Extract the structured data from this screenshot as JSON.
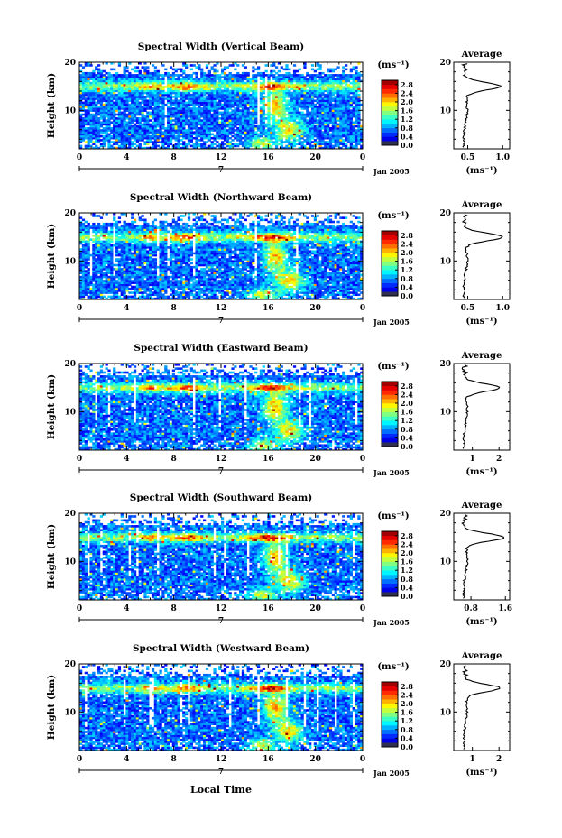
{
  "figure": {
    "xlabel_bottom": "Local Time",
    "colorbar_unit": "(ms⁻¹)",
    "avg_title": "Average",
    "avg_unit": "(ms⁻¹)",
    "day_label": "7",
    "date_label": "Jan 2005"
  },
  "chart_data": [
    {
      "type": "heatmap",
      "title": "Spectral Width (Vertical Beam)",
      "ylabel": "Height (km)",
      "xlim": [
        0,
        24
      ],
      "ylim": [
        2,
        20
      ],
      "x_ticks": [
        "0",
        "4",
        "8",
        "12",
        "16",
        "20",
        "0"
      ],
      "y_ticks": [
        "10",
        "20"
      ],
      "colorbar": {
        "ticks": [
          "2.8",
          "2.4",
          "2.0",
          "1.6",
          "1.2",
          "0.8",
          "0.4",
          "0.0"
        ],
        "range": [
          0,
          3.0
        ]
      },
      "average": {
        "x_ticks": [
          "0.5",
          "1.0"
        ],
        "xlim": [
          0.3,
          1.1
        ],
        "y_ticks": [
          "10",
          "20"
        ],
        "peak_height_km": 15,
        "peak_value": 0.95
      }
    },
    {
      "type": "heatmap",
      "title": "Spectral Width (Northward Beam)",
      "ylabel": "Height (km)",
      "xlim": [
        0,
        24
      ],
      "ylim": [
        2,
        20
      ],
      "x_ticks": [
        "0",
        "4",
        "8",
        "12",
        "16",
        "20",
        "0"
      ],
      "y_ticks": [
        "10",
        "20"
      ],
      "colorbar": {
        "ticks": [
          "2.8",
          "2.4",
          "2.0",
          "1.6",
          "1.2",
          "0.8",
          "0.4",
          "0.0"
        ],
        "range": [
          0,
          3.0
        ]
      },
      "average": {
        "x_ticks": [
          "0.5",
          "1.0"
        ],
        "xlim": [
          0.3,
          1.1
        ],
        "y_ticks": [
          "10",
          "20"
        ],
        "peak_height_km": 15,
        "peak_value": 0.98
      }
    },
    {
      "type": "heatmap",
      "title": "Spectral Width (Eastward Beam)",
      "ylabel": "Height (km)",
      "xlim": [
        0,
        24
      ],
      "ylim": [
        2,
        20
      ],
      "x_ticks": [
        "0",
        "4",
        "8",
        "12",
        "16",
        "20",
        "0"
      ],
      "y_ticks": [
        "10",
        "20"
      ],
      "colorbar": {
        "ticks": [
          "2.8",
          "2.4",
          "2.0",
          "1.6",
          "1.2",
          "0.8",
          "0.4",
          "0.0"
        ],
        "range": [
          0,
          3.0
        ]
      },
      "average": {
        "x_ticks": [
          "1",
          "2"
        ],
        "xlim": [
          0.3,
          2.4
        ],
        "y_ticks": [
          "10",
          "20"
        ],
        "peak_height_km": 15,
        "peak_value": 2.0
      }
    },
    {
      "type": "heatmap",
      "title": "Spectral Width (Southward Beam)",
      "ylabel": "Height (km)",
      "xlim": [
        0,
        24
      ],
      "ylim": [
        2,
        20
      ],
      "x_ticks": [
        "0",
        "4",
        "8",
        "12",
        "16",
        "20",
        "0"
      ],
      "y_ticks": [
        "10",
        "20"
      ],
      "colorbar": {
        "ticks": [
          "2.8",
          "2.4",
          "2.0",
          "1.6",
          "1.2",
          "0.8",
          "0.4",
          "0.0"
        ],
        "range": [
          0,
          3.0
        ]
      },
      "average": {
        "x_ticks": [
          "0.8",
          "1.6"
        ],
        "xlim": [
          0.4,
          1.7
        ],
        "y_ticks": [
          "10",
          "20"
        ],
        "peak_height_km": 15,
        "peak_value": 1.55
      }
    },
    {
      "type": "heatmap",
      "title": "Spectral Width (Westward Beam)",
      "ylabel": "Height (km)",
      "xlim": [
        0,
        24
      ],
      "ylim": [
        2,
        20
      ],
      "x_ticks": [
        "0",
        "4",
        "8",
        "12",
        "16",
        "20",
        "0"
      ],
      "y_ticks": [
        "10",
        "20"
      ],
      "colorbar": {
        "ticks": [
          "2.8",
          "2.4",
          "2.0",
          "1.6",
          "1.2",
          "0.8",
          "0.4",
          "0.0"
        ],
        "range": [
          0,
          3.0
        ]
      },
      "average": {
        "x_ticks": [
          "1",
          "2"
        ],
        "xlim": [
          0.3,
          2.4
        ],
        "y_ticks": [
          "10",
          "20"
        ],
        "peak_height_km": 15,
        "peak_value": 2.0
      }
    }
  ]
}
